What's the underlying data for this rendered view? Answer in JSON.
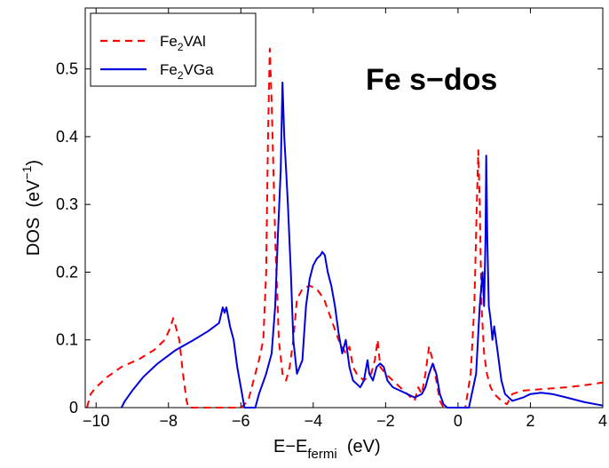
{
  "chart_data": {
    "type": "line",
    "title": "",
    "annotation": "Fe s−dos",
    "xlabel": {
      "base": "E−E",
      "sub": "fermi",
      "tail": "  (eV)"
    },
    "ylabel": {
      "base": "DOS  (eV",
      "sup": "−1",
      "tail": ")"
    },
    "xlim": [
      -10.3,
      4
    ],
    "ylim": [
      0,
      0.59
    ],
    "xticks": [
      -10,
      -8,
      -6,
      -4,
      -2,
      0,
      2,
      4
    ],
    "yticks": [
      0,
      0.1,
      0.2,
      0.3,
      0.4,
      0.5
    ],
    "xtick_labels": [
      "−10",
      "−8",
      "−6",
      "−4",
      "−2",
      "0",
      "2",
      "4"
    ],
    "ytick_labels": [
      "0",
      "0.1",
      "0.2",
      "0.3",
      "0.4",
      "0.5"
    ],
    "grid": false,
    "legend_position": "top-left",
    "series": [
      {
        "name_base": "Fe",
        "name_sub": "2",
        "name_tail": "VAl",
        "color": "#ff0000",
        "dash": "dashed",
        "points": [
          [
            -10.25,
            0.0
          ],
          [
            -10.15,
            0.02
          ],
          [
            -10.0,
            0.03
          ],
          [
            -9.7,
            0.045
          ],
          [
            -9.3,
            0.06
          ],
          [
            -8.8,
            0.072
          ],
          [
            -8.4,
            0.085
          ],
          [
            -8.1,
            0.1
          ],
          [
            -7.95,
            0.118
          ],
          [
            -7.87,
            0.132
          ],
          [
            -7.8,
            0.12
          ],
          [
            -7.7,
            0.1
          ],
          [
            -7.6,
            0.05
          ],
          [
            -7.5,
            0.01
          ],
          [
            -7.45,
            0.0
          ],
          [
            -6.0,
            0.0
          ],
          [
            -5.8,
            0.01
          ],
          [
            -5.65,
            0.04
          ],
          [
            -5.5,
            0.07
          ],
          [
            -5.38,
            0.1
          ],
          [
            -5.3,
            0.2
          ],
          [
            -5.25,
            0.4
          ],
          [
            -5.2,
            0.53
          ],
          [
            -5.15,
            0.45
          ],
          [
            -5.05,
            0.25
          ],
          [
            -4.95,
            0.1
          ],
          [
            -4.85,
            0.05
          ],
          [
            -4.75,
            0.04
          ],
          [
            -4.65,
            0.06
          ],
          [
            -4.55,
            0.1
          ],
          [
            -4.45,
            0.16
          ],
          [
            -4.3,
            0.175
          ],
          [
            -4.1,
            0.18
          ],
          [
            -3.9,
            0.175
          ],
          [
            -3.7,
            0.16
          ],
          [
            -3.5,
            0.13
          ],
          [
            -3.3,
            0.1
          ],
          [
            -3.1,
            0.08
          ],
          [
            -3.0,
            0.09
          ],
          [
            -2.9,
            0.06
          ],
          [
            -2.8,
            0.05
          ],
          [
            -2.6,
            0.04
          ],
          [
            -2.4,
            0.05
          ],
          [
            -2.3,
            0.07
          ],
          [
            -2.22,
            0.1
          ],
          [
            -2.15,
            0.06
          ],
          [
            -2.0,
            0.05
          ],
          [
            -1.8,
            0.04
          ],
          [
            -1.6,
            0.03
          ],
          [
            -1.4,
            0.02
          ],
          [
            -1.2,
            0.01
          ],
          [
            -1.1,
            0.03
          ],
          [
            -1.0,
            0.02
          ],
          [
            -0.9,
            0.05
          ],
          [
            -0.8,
            0.09
          ],
          [
            -0.7,
            0.07
          ],
          [
            -0.6,
            0.04
          ],
          [
            -0.5,
            0.01
          ],
          [
            -0.4,
            0.0
          ],
          [
            0.2,
            0.0
          ],
          [
            0.35,
            0.05
          ],
          [
            0.45,
            0.15
          ],
          [
            0.52,
            0.3
          ],
          [
            0.56,
            0.38
          ],
          [
            0.6,
            0.3
          ],
          [
            0.65,
            0.15
          ],
          [
            0.72,
            0.08
          ],
          [
            0.8,
            0.05
          ],
          [
            0.9,
            0.03
          ],
          [
            1.0,
            0.02
          ],
          [
            1.2,
            0.01
          ],
          [
            1.35,
            0.005
          ],
          [
            1.5,
            0.02
          ],
          [
            1.8,
            0.025
          ],
          [
            2.5,
            0.028
          ],
          [
            3.0,
            0.03
          ],
          [
            3.5,
            0.033
          ],
          [
            4.0,
            0.037
          ]
        ]
      },
      {
        "name_base": "Fe",
        "name_sub": "2",
        "name_tail": "VGa",
        "color": "#0000dd",
        "dash": "solid",
        "points": [
          [
            -9.3,
            0.0
          ],
          [
            -9.2,
            0.01
          ],
          [
            -9.0,
            0.025
          ],
          [
            -8.7,
            0.045
          ],
          [
            -8.3,
            0.065
          ],
          [
            -7.8,
            0.085
          ],
          [
            -7.3,
            0.1
          ],
          [
            -6.9,
            0.113
          ],
          [
            -6.6,
            0.125
          ],
          [
            -6.5,
            0.148
          ],
          [
            -6.45,
            0.14
          ],
          [
            -6.4,
            0.148
          ],
          [
            -6.3,
            0.12
          ],
          [
            -6.2,
            0.1
          ],
          [
            -6.1,
            0.06
          ],
          [
            -6.0,
            0.03
          ],
          [
            -5.9,
            0.0
          ],
          [
            -5.6,
            0.0
          ],
          [
            -5.5,
            0.02
          ],
          [
            -5.3,
            0.05
          ],
          [
            -5.15,
            0.08
          ],
          [
            -5.05,
            0.15
          ],
          [
            -4.98,
            0.25
          ],
          [
            -4.9,
            0.35
          ],
          [
            -4.85,
            0.48
          ],
          [
            -4.8,
            0.4
          ],
          [
            -4.75,
            0.35
          ],
          [
            -4.7,
            0.3
          ],
          [
            -4.62,
            0.2
          ],
          [
            -4.55,
            0.1
          ],
          [
            -4.45,
            0.05
          ],
          [
            -4.3,
            0.07
          ],
          [
            -4.2,
            0.15
          ],
          [
            -4.1,
            0.19
          ],
          [
            -4.0,
            0.21
          ],
          [
            -3.9,
            0.22
          ],
          [
            -3.8,
            0.225
          ],
          [
            -3.75,
            0.23
          ],
          [
            -3.68,
            0.225
          ],
          [
            -3.6,
            0.2
          ],
          [
            -3.5,
            0.18
          ],
          [
            -3.4,
            0.15
          ],
          [
            -3.3,
            0.11
          ],
          [
            -3.2,
            0.08
          ],
          [
            -3.1,
            0.1
          ],
          [
            -3.0,
            0.06
          ],
          [
            -2.9,
            0.04
          ],
          [
            -2.8,
            0.035
          ],
          [
            -2.7,
            0.03
          ],
          [
            -2.6,
            0.04
          ],
          [
            -2.5,
            0.07
          ],
          [
            -2.45,
            0.05
          ],
          [
            -2.35,
            0.04
          ],
          [
            -2.25,
            0.06
          ],
          [
            -2.15,
            0.065
          ],
          [
            -2.05,
            0.06
          ],
          [
            -1.95,
            0.04
          ],
          [
            -1.8,
            0.03
          ],
          [
            -1.6,
            0.025
          ],
          [
            -1.4,
            0.02
          ],
          [
            -1.2,
            0.015
          ],
          [
            -1.0,
            0.02
          ],
          [
            -0.9,
            0.03
          ],
          [
            -0.8,
            0.05
          ],
          [
            -0.7,
            0.065
          ],
          [
            -0.6,
            0.05
          ],
          [
            -0.5,
            0.02
          ],
          [
            -0.4,
            0.005
          ],
          [
            -0.3,
            0.0
          ],
          [
            0.3,
            0.0
          ],
          [
            0.5,
            0.05
          ],
          [
            0.6,
            0.15
          ],
          [
            0.68,
            0.2
          ],
          [
            0.72,
            0.15
          ],
          [
            0.76,
            0.25
          ],
          [
            0.78,
            0.372
          ],
          [
            0.81,
            0.25
          ],
          [
            0.85,
            0.15
          ],
          [
            0.9,
            0.13
          ],
          [
            0.95,
            0.1
          ],
          [
            1.0,
            0.12
          ],
          [
            1.1,
            0.08
          ],
          [
            1.2,
            0.04
          ],
          [
            1.3,
            0.02
          ],
          [
            1.5,
            0.01
          ],
          [
            1.8,
            0.015
          ],
          [
            2.0,
            0.02
          ],
          [
            2.3,
            0.022
          ],
          [
            2.6,
            0.02
          ],
          [
            3.0,
            0.015
          ],
          [
            3.5,
            0.008
          ],
          [
            4.0,
            0.003
          ]
        ]
      }
    ]
  }
}
